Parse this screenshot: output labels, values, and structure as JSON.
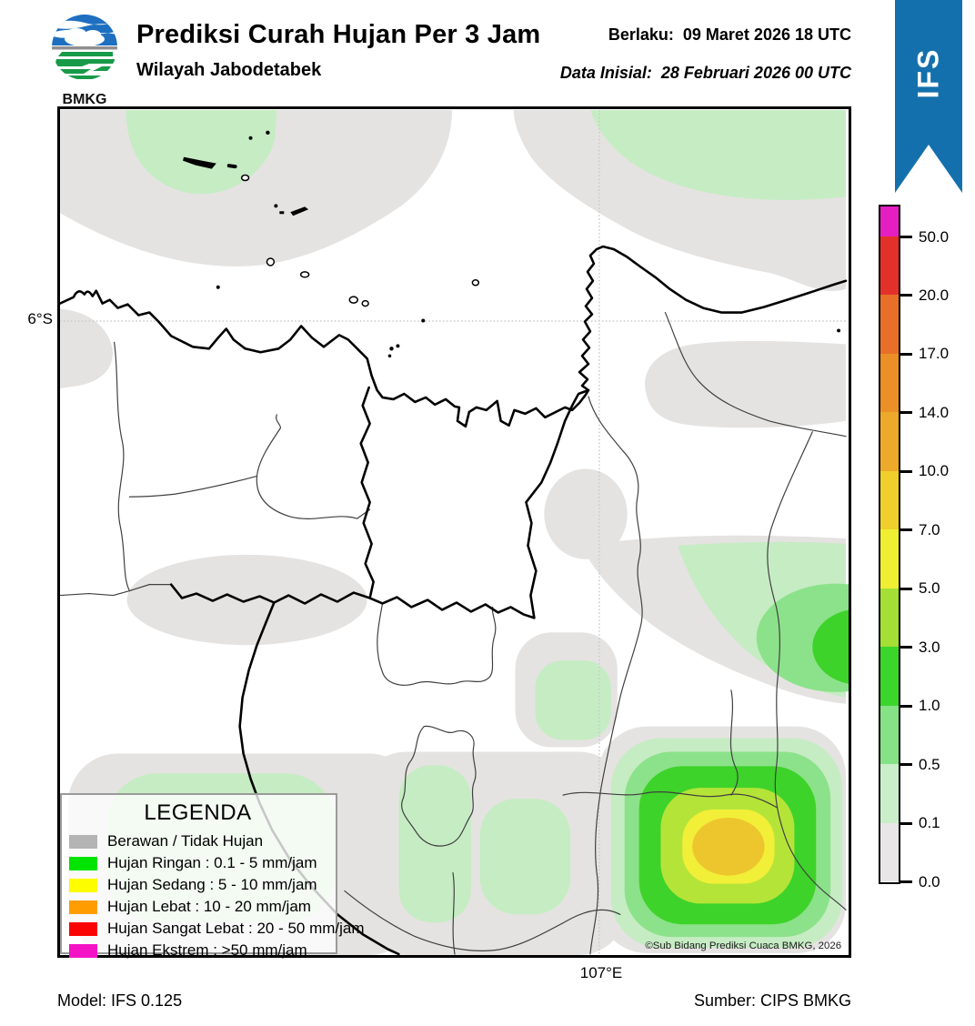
{
  "header": {
    "title": "Prediksi Curah Hujan Per 3 Jam",
    "subtitle": "Wilayah Jabodetabek",
    "valid_label": "Berlaku:",
    "valid_value": "09 Maret 2026 18 UTC",
    "init_label": "Data Inisial:",
    "init_value": "28 Februari 2026 00 UTC",
    "logo_text": "BMKG"
  },
  "ribbon": {
    "label": "IFS",
    "color": "#1470ac"
  },
  "map": {
    "lat_tick": "6°S",
    "lon_tick": "107°E",
    "copyright": "©Sub Bidang Prediksi Cuaca BMKG, 2026",
    "shading_colors": {
      "cloud_gray": "#e5e3e1",
      "rain_pale_green": "#c6ecc4",
      "rain_med_green": "#8ce28a",
      "rain_bright_green": "#3ed32a",
      "rain_yellow_green": "#b5e438",
      "rain_yellow": "#f2ef38",
      "rain_gold": "#edc62e"
    }
  },
  "legend": {
    "title": "LEGENDA",
    "items": [
      {
        "label": "Berawan / Tidak Hujan",
        "color": "#b4b4b4"
      },
      {
        "label": "Hujan Ringan : 0.1 - 5 mm/jam",
        "color": "#00e400"
      },
      {
        "label": "Hujan Sedang : 5 - 10 mm/jam",
        "color": "#fdfd00"
      },
      {
        "label": "Hujan Lebat : 10 - 20 mm/jam",
        "color": "#ff9d00"
      },
      {
        "label": "Hujan Sangat Lebat : 20 - 50 mm/jam",
        "color": "#fb0404"
      },
      {
        "label": "Hujan Ekstrem : >50 mm/jam",
        "color": "#f414c6"
      }
    ]
  },
  "colorbar": {
    "unit": "mm/jam",
    "tick_labels_top_to_bottom": [
      "50.0",
      "20.0",
      "17.0",
      "14.0",
      "10.0",
      "7.0",
      "5.0",
      "3.0",
      "1.0",
      "0.5",
      "0.1",
      "0.0"
    ],
    "segment_colors_top_to_bottom": [
      "#e51ec2",
      "#e3312a",
      "#e86f29",
      "#eb9027",
      "#eda92a",
      "#eecf2b",
      "#f0ee33",
      "#a4df36",
      "#3cd52c",
      "#85e285",
      "#c9eec9",
      "#e8e6e6"
    ]
  },
  "footer": {
    "model": "Model: IFS 0.125",
    "source": "Sumber: CIPS BMKG"
  }
}
